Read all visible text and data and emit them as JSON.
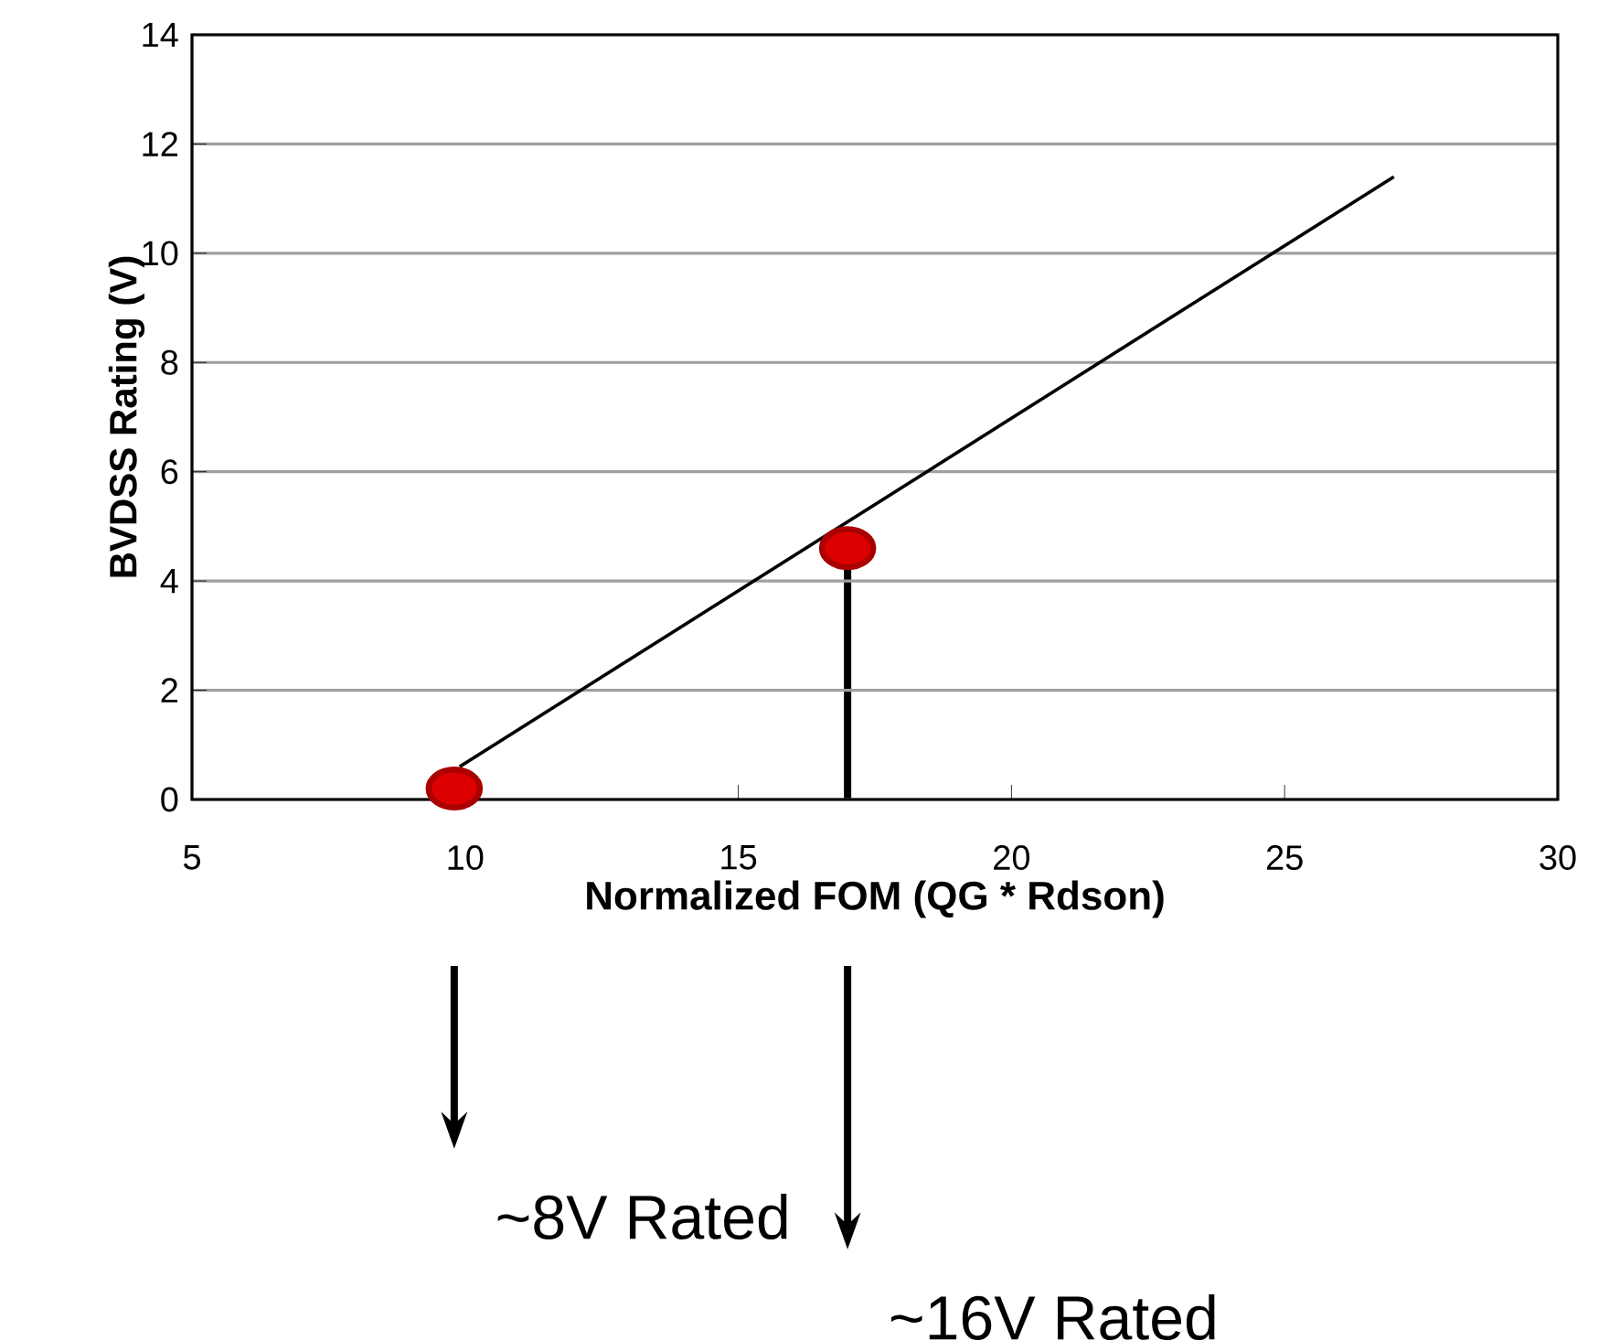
{
  "chart_data": {
    "type": "scatter",
    "xlabel": "Normalized FOM (QG * Rdson)",
    "ylabel": "BVDSS  Rating (V)",
    "xlim": [
      5,
      30
    ],
    "xticks": [
      5,
      10,
      15,
      20,
      25,
      30
    ],
    "ylim": [
      0,
      14
    ],
    "yticks": [
      0,
      2,
      4,
      6,
      8,
      10,
      12,
      14
    ],
    "grid": "y",
    "series": [
      {
        "type": "line",
        "color": "#000000",
        "x": [
          9.9,
          27
        ],
        "values": [
          0.6,
          11.4
        ],
        "marker": "none",
        "line_style": "solid"
      },
      {
        "type": "scatter",
        "color": "#dd0000",
        "x": [
          9.8,
          17
        ],
        "values": [
          0.2,
          4.6
        ],
        "marker": "circle"
      }
    ],
    "annotations": [
      "~8V Rated",
      "~16V Rated"
    ]
  }
}
